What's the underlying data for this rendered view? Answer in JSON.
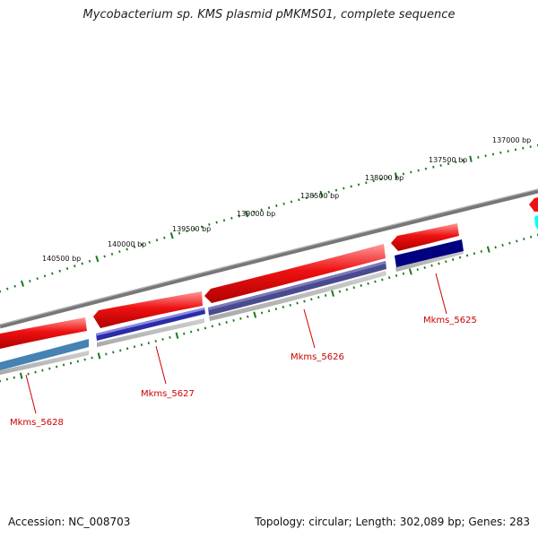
{
  "title": "Mycobacterium sp. KMS plasmid pMKMS01, complete sequence",
  "ticks": [
    {
      "label": "137000 bp"
    },
    {
      "label": "137500 bp"
    },
    {
      "label": "138000 bp"
    },
    {
      "label": "138500 bp"
    },
    {
      "label": "139000 bp"
    },
    {
      "label": "139500 bp"
    },
    {
      "label": "140000 bp"
    },
    {
      "label": "140500 bp"
    }
  ],
  "genes": [
    {
      "name": "Mkms_5625"
    },
    {
      "name": "Mkms_5626"
    },
    {
      "name": "Mkms_5627"
    },
    {
      "name": "Mkms_5628"
    }
  ],
  "colors": {
    "forward_gene": "#ee1111",
    "backbone": "#808080",
    "ticks": "#1a7a1a",
    "label": "#cc0000",
    "feature_5625": "#000080",
    "feature_5626": "#4a4a8e",
    "feature_5627": "#3c3cb4",
    "feature_5628": "#4682b4",
    "feature_edge": "#00ffff"
  },
  "footer": {
    "accession": "Accession: NC_008703",
    "topology": "Topology: circular; Length: 302,089 bp; Genes: 283"
  }
}
